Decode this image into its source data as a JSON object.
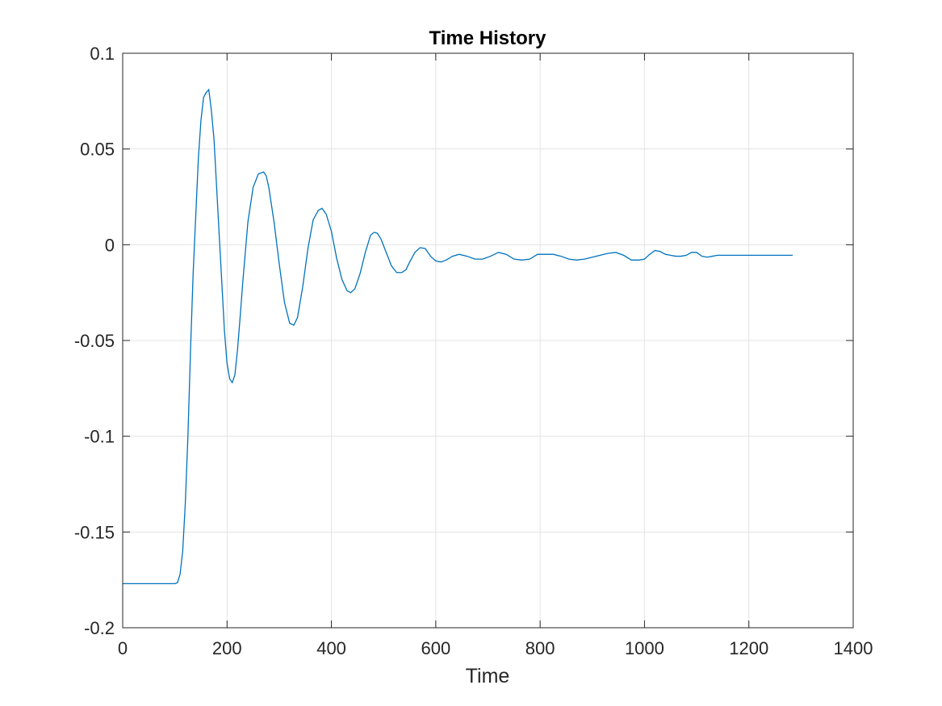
{
  "colors": {
    "series_line": "#0072BD",
    "axis": "#262626",
    "grid": "#e3e3e3",
    "background": "#ffffff"
  },
  "chart_data": {
    "type": "line",
    "title": "Time History",
    "xlabel": "Time",
    "ylabel": "",
    "xlim": [
      0,
      1400
    ],
    "ylim": [
      -0.2,
      0.1
    ],
    "xticks": [
      0,
      200,
      400,
      600,
      800,
      1000,
      1200,
      1400
    ],
    "xtick_labels": [
      "0",
      "200",
      "400",
      "600",
      "800",
      "1000",
      "1200",
      "1400"
    ],
    "yticks": [
      -0.2,
      -0.15,
      -0.1,
      -0.05,
      0,
      0.05,
      0.1
    ],
    "ytick_labels": [
      "-0.2",
      "-0.15",
      "-0.1",
      "-0.05",
      "0",
      "0.05",
      "0.1"
    ],
    "grid": true,
    "legend": "none",
    "series": [
      {
        "x": [
          0,
          50,
          100,
          105,
          110,
          115,
          120,
          125,
          130,
          135,
          140,
          145,
          150,
          155,
          160,
          165,
          170,
          175,
          180,
          185,
          190,
          195,
          200,
          205,
          210,
          215,
          220,
          225,
          230,
          240,
          250,
          260,
          270,
          275,
          280,
          290,
          300,
          310,
          320,
          328,
          335,
          345,
          355,
          365,
          375,
          382,
          390,
          400,
          410,
          420,
          430,
          437,
          445,
          455,
          465,
          475,
          482,
          488,
          495,
          505,
          515,
          525,
          535,
          543,
          550,
          560,
          570,
          580,
          590,
          600,
          610,
          620,
          632,
          645,
          660,
          675,
          690,
          705,
          720,
          735,
          750,
          765,
          780,
          795,
          810,
          825,
          840,
          855,
          870,
          885,
          900,
          915,
          930,
          945,
          960,
          975,
          990,
          1000,
          1010,
          1020,
          1030,
          1040,
          1050,
          1060,
          1070,
          1080,
          1090,
          1100,
          1110,
          1120,
          1130,
          1140,
          1150,
          1160,
          1170,
          1180,
          1190,
          1200,
          1210,
          1220,
          1230,
          1240,
          1250,
          1265,
          1284
        ],
        "y": [
          -0.177,
          -0.177,
          -0.177,
          -0.1765,
          -0.172,
          -0.16,
          -0.135,
          -0.1,
          -0.055,
          -0.015,
          0.015,
          0.045,
          0.065,
          0.077,
          0.0795,
          0.081,
          0.07,
          0.055,
          0.03,
          0.005,
          -0.02,
          -0.045,
          -0.062,
          -0.07,
          -0.072,
          -0.068,
          -0.055,
          -0.038,
          -0.02,
          0.012,
          0.03,
          0.037,
          0.038,
          0.036,
          0.03,
          0.012,
          -0.01,
          -0.03,
          -0.041,
          -0.042,
          -0.038,
          -0.022,
          -0.002,
          0.013,
          0.018,
          0.019,
          0.016,
          0.007,
          -0.007,
          -0.018,
          -0.024,
          -0.025,
          -0.023,
          -0.015,
          -0.004,
          0.005,
          0.0065,
          0.006,
          0.003,
          -0.004,
          -0.011,
          -0.0145,
          -0.0145,
          -0.013,
          -0.009,
          -0.004,
          -0.0015,
          -0.002,
          -0.006,
          -0.0085,
          -0.009,
          -0.008,
          -0.006,
          -0.005,
          -0.006,
          -0.0075,
          -0.0075,
          -0.006,
          -0.004,
          -0.005,
          -0.0075,
          -0.008,
          -0.0075,
          -0.005,
          -0.005,
          -0.005,
          -0.006,
          -0.0075,
          -0.008,
          -0.0075,
          -0.0065,
          -0.0055,
          -0.0045,
          -0.004,
          -0.0055,
          -0.008,
          -0.008,
          -0.0075,
          -0.005,
          -0.003,
          -0.0035,
          -0.005,
          -0.0055,
          -0.006,
          -0.006,
          -0.0055,
          -0.004,
          -0.004,
          -0.006,
          -0.0065,
          -0.006,
          -0.0055,
          -0.0055,
          -0.0055,
          -0.0055,
          -0.0055,
          -0.0055,
          -0.0055,
          -0.0055,
          -0.0055,
          -0.0055,
          -0.0055,
          -0.0055,
          -0.0055,
          -0.0055
        ]
      }
    ]
  }
}
